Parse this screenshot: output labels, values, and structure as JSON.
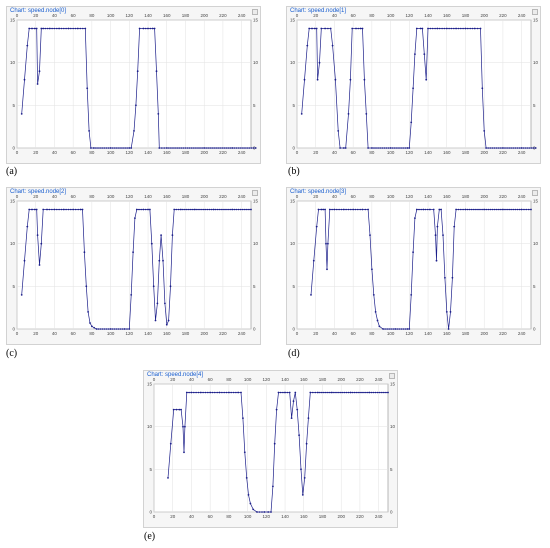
{
  "colors": {
    "title": "#1a5fd0",
    "series": "#1c1f8a",
    "grid": "#e2e2e2",
    "panel": "#f6f6f6"
  },
  "chart_data": [
    {
      "type": "line",
      "title": "Chart: speed.node[0]",
      "caption": "(a)",
      "xlim": [
        0,
        250
      ],
      "ylim": [
        0,
        15
      ],
      "grid": true,
      "xticks": [
        0,
        20,
        40,
        60,
        80,
        100,
        120,
        140,
        160,
        180,
        200,
        220,
        240
      ],
      "yticks": [
        0,
        5,
        10,
        15
      ],
      "series": [
        {
          "points": [
            [
              5,
              4
            ],
            [
              8,
              8
            ],
            [
              11,
              12
            ],
            [
              13,
              14
            ],
            [
              16,
              14
            ],
            [
              19,
              14
            ],
            [
              21,
              14
            ],
            [
              22,
              7.5
            ],
            [
              24,
              9
            ],
            [
              26,
              14
            ],
            [
              28,
              14
            ],
            [
              35,
              14
            ],
            [
              45,
              14
            ],
            [
              55,
              14
            ],
            [
              65,
              14
            ],
            [
              73,
              14
            ],
            [
              75,
              7
            ],
            [
              77,
              2
            ],
            [
              79,
              0
            ],
            [
              82,
              0
            ],
            [
              100,
              0
            ],
            [
              120,
              0
            ],
            [
              122,
              0
            ],
            [
              125,
              2
            ],
            [
              127,
              5
            ],
            [
              129,
              9
            ],
            [
              131,
              14
            ],
            [
              135,
              14
            ],
            [
              140,
              14
            ],
            [
              145,
              14
            ],
            [
              147,
              14
            ],
            [
              149,
              9
            ],
            [
              151,
              4
            ],
            [
              152,
              0
            ],
            [
              160,
              0
            ],
            [
              200,
              0
            ],
            [
              230,
              0
            ],
            [
              255,
              0
            ]
          ]
        }
      ]
    },
    {
      "type": "line",
      "title": "Chart: speed.node[1]",
      "caption": "(b)",
      "xlim": [
        0,
        250
      ],
      "ylim": [
        0,
        15
      ],
      "grid": true,
      "xticks": [
        0,
        20,
        40,
        60,
        80,
        100,
        120,
        140,
        160,
        180,
        200,
        220,
        240
      ],
      "yticks": [
        0,
        5,
        10,
        15
      ],
      "series": [
        {
          "points": [
            [
              5,
              4
            ],
            [
              8,
              8
            ],
            [
              11,
              12
            ],
            [
              13,
              14
            ],
            [
              16,
              14
            ],
            [
              19,
              14
            ],
            [
              21,
              14
            ],
            [
              22,
              8
            ],
            [
              24,
              10
            ],
            [
              26,
              14
            ],
            [
              30,
              14
            ],
            [
              36,
              14
            ],
            [
              38,
              12
            ],
            [
              41,
              8
            ],
            [
              44,
              2
            ],
            [
              46,
              0
            ],
            [
              50,
              0
            ],
            [
              52,
              0
            ],
            [
              55,
              4
            ],
            [
              57,
              8
            ],
            [
              59,
              14
            ],
            [
              63,
              14
            ],
            [
              68,
              14
            ],
            [
              70,
              14
            ],
            [
              72,
              8
            ],
            [
              74,
              4
            ],
            [
              76,
              0
            ],
            [
              80,
              0
            ],
            [
              100,
              0
            ],
            [
              118,
              0
            ],
            [
              120,
              0
            ],
            [
              122,
              3
            ],
            [
              124,
              7
            ],
            [
              126,
              11
            ],
            [
              128,
              14
            ],
            [
              132,
              14
            ],
            [
              134,
              14
            ],
            [
              136,
              11
            ],
            [
              138,
              8
            ],
            [
              140,
              14
            ],
            [
              150,
              14
            ],
            [
              160,
              14
            ],
            [
              170,
              14
            ],
            [
              180,
              14
            ],
            [
              190,
              14
            ],
            [
              196,
              14
            ],
            [
              198,
              7
            ],
            [
              200,
              2
            ],
            [
              202,
              0
            ],
            [
              220,
              0
            ],
            [
              240,
              0
            ],
            [
              255,
              0
            ]
          ]
        }
      ]
    },
    {
      "type": "line",
      "title": "Chart: speed.node[2]",
      "caption": "(c)",
      "xlim": [
        0,
        250
      ],
      "ylim": [
        0,
        15
      ],
      "grid": true,
      "xticks": [
        0,
        20,
        40,
        60,
        80,
        100,
        120,
        140,
        160,
        180,
        200,
        220,
        240
      ],
      "yticks": [
        0,
        5,
        10,
        15
      ],
      "series": [
        {
          "points": [
            [
              5,
              4
            ],
            [
              8,
              8
            ],
            [
              11,
              12
            ],
            [
              13,
              14
            ],
            [
              16,
              14
            ],
            [
              19,
              14
            ],
            [
              21,
              14
            ],
            [
              22,
              11
            ],
            [
              24,
              7.5
            ],
            [
              26,
              10
            ],
            [
              28,
              14
            ],
            [
              32,
              14
            ],
            [
              40,
              14
            ],
            [
              50,
              14
            ],
            [
              60,
              14
            ],
            [
              68,
              14
            ],
            [
              70,
              14
            ],
            [
              72,
              9
            ],
            [
              74,
              5
            ],
            [
              76,
              2
            ],
            [
              78,
              0.7
            ],
            [
              80,
              0.3
            ],
            [
              85,
              0
            ],
            [
              100,
              0
            ],
            [
              115,
              0
            ],
            [
              120,
              0
            ],
            [
              122,
              4
            ],
            [
              124,
              9
            ],
            [
              126,
              13
            ],
            [
              128,
              14
            ],
            [
              135,
              14
            ],
            [
              140,
              14
            ],
            [
              142,
              14
            ],
            [
              144,
              10
            ],
            [
              146,
              5
            ],
            [
              148,
              1
            ],
            [
              150,
              3
            ],
            [
              152,
              8
            ],
            [
              154,
              11
            ],
            [
              156,
              8
            ],
            [
              158,
              3
            ],
            [
              160,
              0.5
            ],
            [
              162,
              1
            ],
            [
              164,
              5
            ],
            [
              166,
              11
            ],
            [
              168,
              14
            ],
            [
              175,
              14
            ],
            [
              190,
              14
            ],
            [
              210,
              14
            ],
            [
              230,
              14
            ],
            [
              250,
              14
            ]
          ]
        }
      ]
    },
    {
      "type": "line",
      "title": "Chart: speed.node[3]",
      "caption": "(d)",
      "xlim": [
        0,
        250
      ],
      "ylim": [
        0,
        15
      ],
      "grid": true,
      "xticks": [
        0,
        20,
        40,
        60,
        80,
        100,
        120,
        140,
        160,
        180,
        200,
        220,
        240
      ],
      "yticks": [
        0,
        5,
        10,
        15
      ],
      "series": [
        {
          "points": [
            [
              15,
              4
            ],
            [
              18,
              8
            ],
            [
              21,
              12
            ],
            [
              23,
              14
            ],
            [
              26,
              14
            ],
            [
              28,
              14
            ],
            [
              30,
              14
            ],
            [
              31,
              10
            ],
            [
              32,
              7
            ],
            [
              33,
              10
            ],
            [
              35,
              14
            ],
            [
              40,
              14
            ],
            [
              50,
              14
            ],
            [
              60,
              14
            ],
            [
              70,
              14
            ],
            [
              76,
              14
            ],
            [
              78,
              11
            ],
            [
              80,
              7
            ],
            [
              82,
              4
            ],
            [
              84,
              2
            ],
            [
              86,
              1
            ],
            [
              88,
              0.3
            ],
            [
              92,
              0
            ],
            [
              105,
              0
            ],
            [
              118,
              0
            ],
            [
              120,
              0
            ],
            [
              122,
              4
            ],
            [
              124,
              9
            ],
            [
              126,
              13
            ],
            [
              128,
              14
            ],
            [
              135,
              14
            ],
            [
              142,
              14
            ],
            [
              146,
              14
            ],
            [
              148,
              11
            ],
            [
              149,
              8
            ],
            [
              150,
              12
            ],
            [
              152,
              14
            ],
            [
              154,
              14
            ],
            [
              156,
              11
            ],
            [
              158,
              6
            ],
            [
              160,
              2
            ],
            [
              162,
              0
            ],
            [
              164,
              2
            ],
            [
              166,
              6
            ],
            [
              168,
              12
            ],
            [
              170,
              14
            ],
            [
              180,
              14
            ],
            [
              200,
              14
            ],
            [
              220,
              14
            ],
            [
              240,
              14
            ],
            [
              250,
              14
            ]
          ]
        }
      ]
    },
    {
      "type": "line",
      "title": "Chart: speed.node[4]",
      "caption": "(e)",
      "xlim": [
        0,
        250
      ],
      "ylim": [
        0,
        15
      ],
      "grid": true,
      "xticks": [
        0,
        20,
        40,
        60,
        80,
        100,
        120,
        140,
        160,
        180,
        200,
        220,
        240
      ],
      "yticks": [
        0,
        5,
        10,
        15
      ],
      "series": [
        {
          "points": [
            [
              15,
              4
            ],
            [
              18,
              8
            ],
            [
              21,
              12
            ],
            [
              24,
              12
            ],
            [
              27,
              12
            ],
            [
              29,
              12
            ],
            [
              31,
              10
            ],
            [
              32,
              7
            ],
            [
              33,
              10
            ],
            [
              35,
              14
            ],
            [
              40,
              14
            ],
            [
              50,
              14
            ],
            [
              60,
              14
            ],
            [
              70,
              14
            ],
            [
              80,
              14
            ],
            [
              90,
              14
            ],
            [
              93,
              14
            ],
            [
              95,
              11
            ],
            [
              97,
              7
            ],
            [
              99,
              4
            ],
            [
              101,
              2
            ],
            [
              103,
              1
            ],
            [
              106,
              0.3
            ],
            [
              110,
              0
            ],
            [
              118,
              0
            ],
            [
              122,
              0
            ],
            [
              125,
              0
            ],
            [
              127,
              3
            ],
            [
              129,
              8
            ],
            [
              131,
              12
            ],
            [
              133,
              14
            ],
            [
              140,
              14
            ],
            [
              145,
              14
            ],
            [
              147,
              11
            ],
            [
              149,
              13
            ],
            [
              151,
              14
            ],
            [
              153,
              12
            ],
            [
              155,
              9
            ],
            [
              157,
              5
            ],
            [
              159,
              2
            ],
            [
              161,
              4
            ],
            [
              163,
              8
            ],
            [
              165,
              11
            ],
            [
              167,
              14
            ],
            [
              175,
              14
            ],
            [
              190,
              14
            ],
            [
              210,
              14
            ],
            [
              230,
              14
            ],
            [
              250,
              14
            ]
          ]
        }
      ]
    }
  ]
}
